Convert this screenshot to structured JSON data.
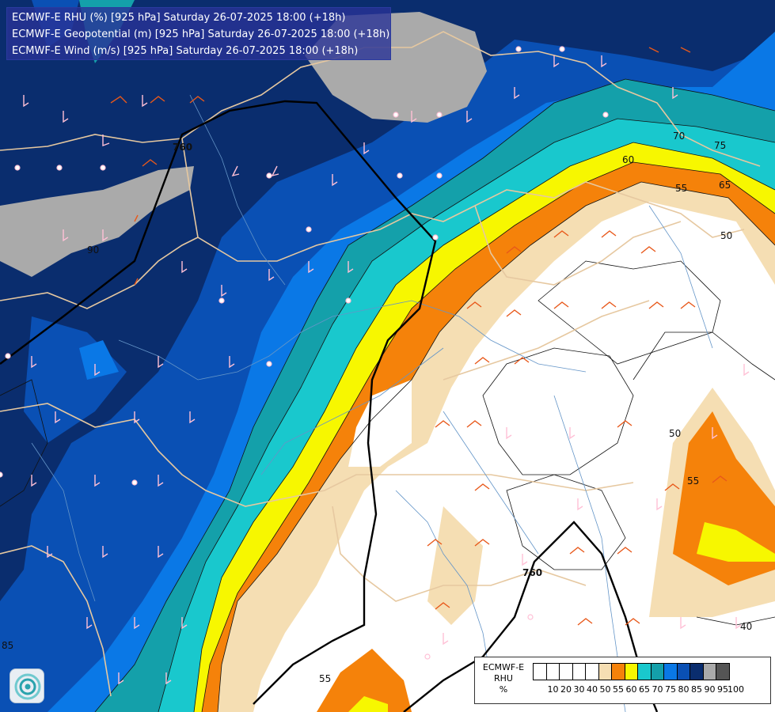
{
  "header": {
    "line1": "ECMWF-E RHU (%) [925 hPa] Saturday 26-07-2025 18:00 (+18h)",
    "line2": "ECMWF-E Geopotential (m) [925 hPa] Saturday 26-07-2025 18:00 (+18h)",
    "line3": "ECMWF-E Wind (m/s) [925 hPa] Saturday 26-07-2025 18:00 (+18h)"
  },
  "legend": {
    "model": "ECMWF-E",
    "variable": "RHU",
    "unit": "%",
    "levels": [
      "10",
      "20",
      "30",
      "40",
      "50",
      "55",
      "60",
      "65",
      "70",
      "75",
      "80",
      "85",
      "90",
      "95",
      "100"
    ],
    "colors": [
      "#ffffff",
      "#ffffff",
      "#ffffff",
      "#ffffff",
      "#ffffff",
      "#f5deb3",
      "#f5820a",
      "#f7f700",
      "#19c8cd",
      "#14a0aa",
      "#0a78e6",
      "#0a50b4",
      "#0a2d6e",
      "#aaaaaa",
      "#555555"
    ]
  },
  "map_labels": {
    "rhu_contours": [
      "90",
      "85",
      "75",
      "70",
      "65",
      "60",
      "55",
      "55",
      "50",
      "50",
      "40",
      "55"
    ],
    "geopotential_contours": [
      "760",
      "760"
    ]
  },
  "colors": {
    "rhu_95": "#aaaaaa",
    "rhu_90": "#0a2d6e",
    "rhu_85": "#0a50b4",
    "rhu_80": "#0a78e6",
    "rhu_75": "#14a0aa",
    "rhu_70": "#19c8cd",
    "rhu_65": "#f7f700",
    "rhu_60": "#f5820a",
    "rhu_55": "#f5deb3",
    "border": "#e6c8a0",
    "river": "#6495c8",
    "geopotential": "#000000",
    "wind_barb_wet": "#ffc0d6",
    "wind_barb_dry": "#e8581a"
  },
  "icons": {
    "logo": "ecmwf-logo-icon"
  }
}
